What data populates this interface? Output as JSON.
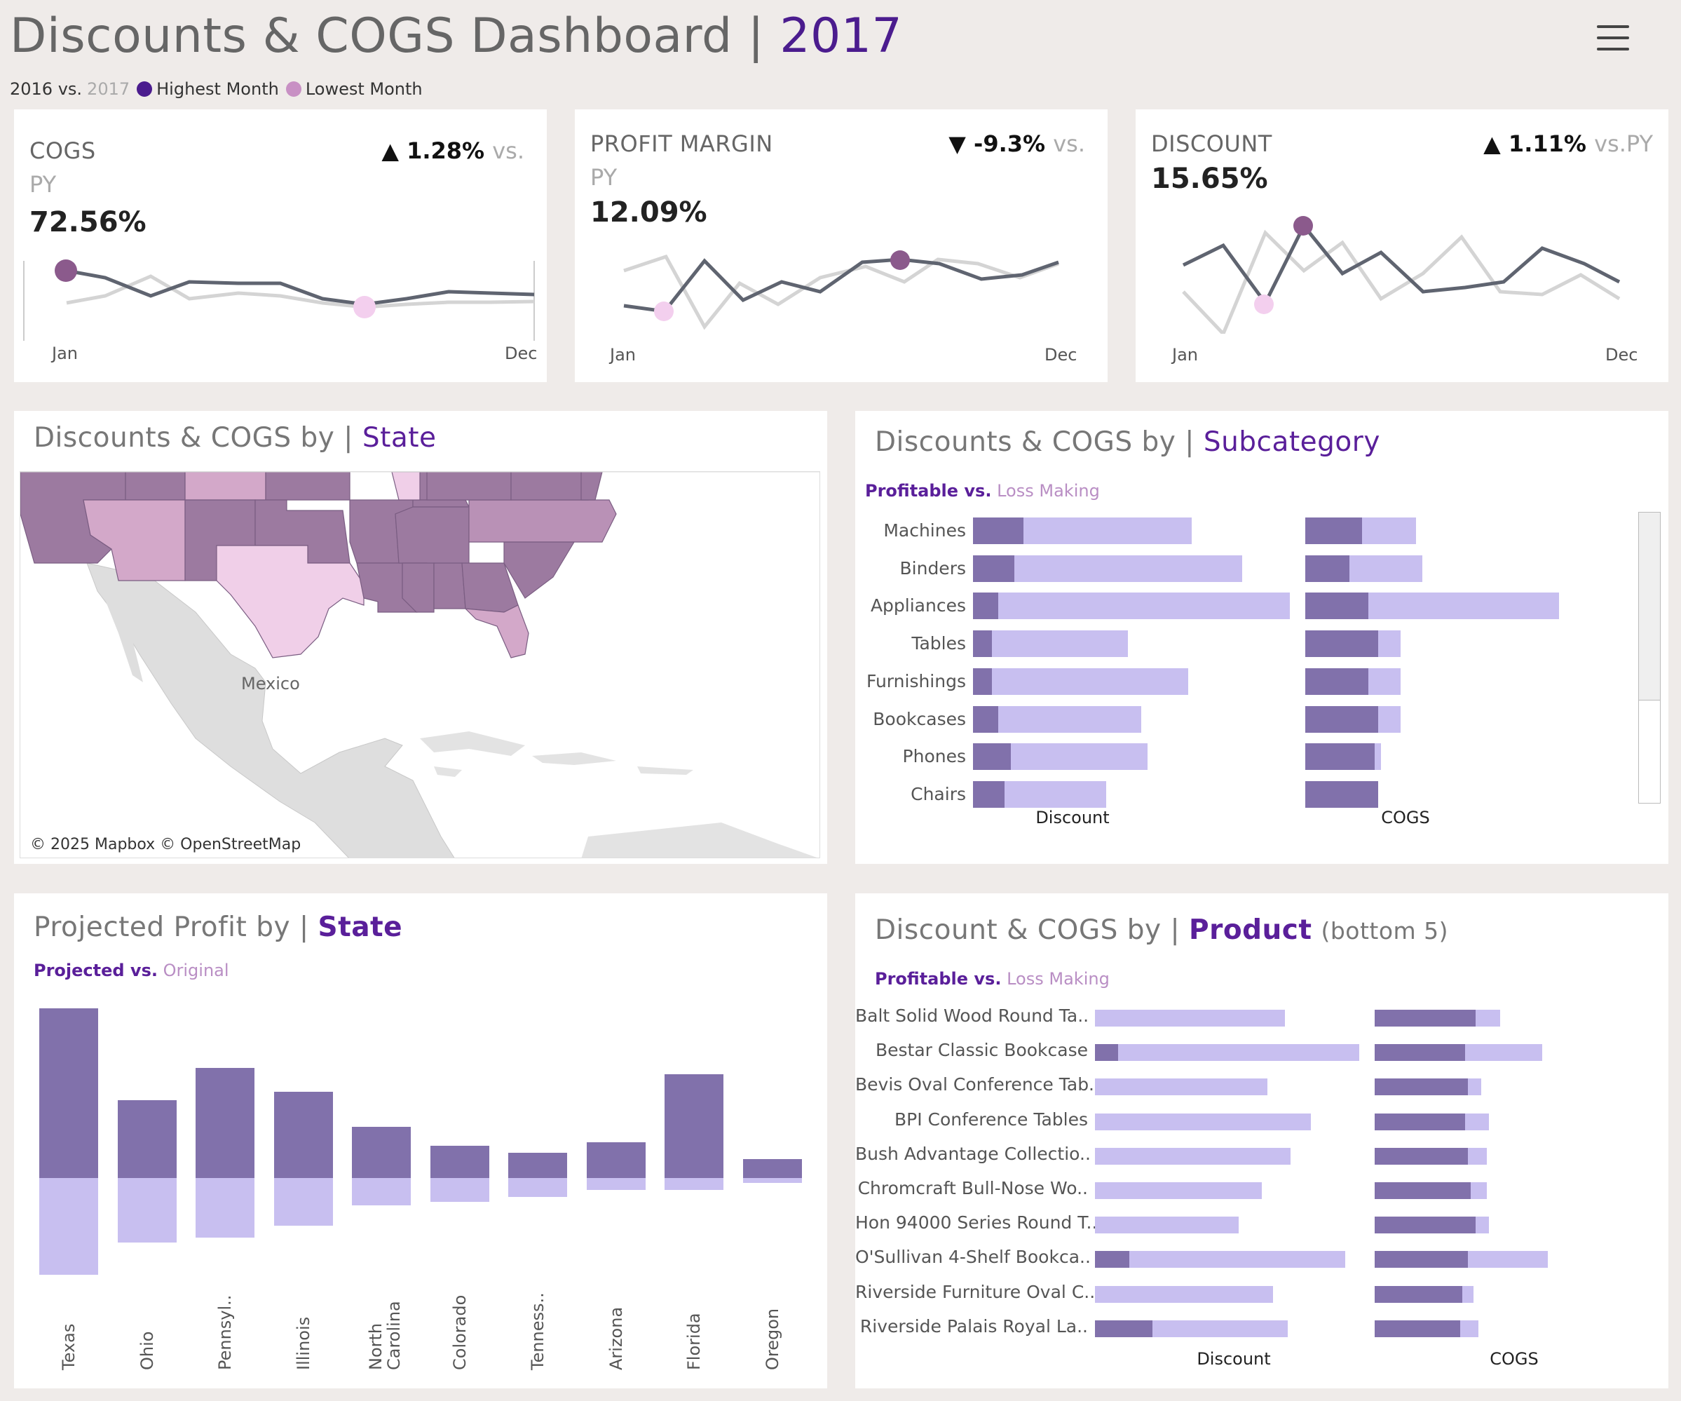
{
  "header": {
    "title": "Discounts & COGS Dashboard | ",
    "year": "2017",
    "legend_base": "2016 vs.",
    "legend_compare": "2017",
    "highest_label": "Highest Month",
    "lowest_label": "Lowest Month",
    "highest_color": "#4b1c8e",
    "lowest_color": "#c890c4"
  },
  "kpis": [
    {
      "label": "COGS",
      "change": "▲ 1.28%",
      "vs": "vs.",
      "py": "PY",
      "value": "72.56%",
      "axis_start": "Jan",
      "axis_end": "Dec"
    },
    {
      "label": "PROFIT MARGIN",
      "change": "▼ -9.3%",
      "vs": "vs.",
      "py": "PY",
      "value": "12.09%",
      "axis_start": "Jan",
      "axis_end": "Dec"
    },
    {
      "label": "DISCOUNT",
      "change": "▲ 1.11%",
      "vs": "vs.PY",
      "py": "",
      "value": "15.65%",
      "axis_start": "Jan",
      "axis_end": "Dec"
    }
  ],
  "map_panel": {
    "title": "Discounts & COGS by | ",
    "accent": "State",
    "country_label": "Mexico",
    "credit": "© 2025 Mapbox © OpenStreetMap"
  },
  "subcategory_panel": {
    "title": "Discounts & COGS by | ",
    "accent": "Subcategory",
    "legend_a": "Profitable vs.",
    "legend_b": "Loss Making",
    "axis_discount": "Discount",
    "axis_cogs": "COGS"
  },
  "subcategory_chart": {
    "type": "bar",
    "categories": [
      "Machines",
      "Binders",
      "Appliances",
      "Tables",
      "Furnishings",
      "Bookcases",
      "Phones",
      "Chairs"
    ],
    "series": [
      {
        "name": "Discount",
        "profitable": [
          0.16,
          0.13,
          0.08,
          0.06,
          0.06,
          0.08,
          0.12,
          0.1
        ],
        "loss_making": [
          0.69,
          0.85,
          1.0,
          0.49,
          0.68,
          0.53,
          0.55,
          0.42
        ]
      },
      {
        "name": "COGS",
        "profitable": [
          0.18,
          0.14,
          0.2,
          0.23,
          0.2,
          0.23,
          0.22,
          0.23
        ],
        "loss_making": [
          0.35,
          0.37,
          0.8,
          0.3,
          0.3,
          0.3,
          0.24,
          0.23
        ]
      }
    ]
  },
  "profit_panel": {
    "title": "Projected Profit  by | ",
    "accent": "State",
    "legend_a": "Projected vs.",
    "legend_b": "Original"
  },
  "profit_chart": {
    "type": "bar",
    "categories": [
      "Texas",
      "Ohio",
      "Pennsyl..",
      "Illinois",
      "North Carolina",
      "Colorado",
      "Tenness..",
      "Arizona",
      "Florida",
      "Oregon"
    ],
    "series": [
      {
        "name": "Projected",
        "values": [
          100,
          46,
          65,
          51,
          30,
          19,
          15,
          21,
          61,
          11
        ]
      },
      {
        "name": "Original",
        "values": [
          -57,
          -38,
          -35,
          -28,
          -16,
          -14,
          -11,
          -7,
          -7,
          -3
        ]
      }
    ]
  },
  "product_panel": {
    "title": "Discount & COGS  by | ",
    "accent": "Product",
    "suffix": "(bottom 5)",
    "legend_a": "Profitable vs.",
    "legend_b": "Loss Making",
    "axis_discount": "Discount",
    "axis_cogs": "COGS"
  },
  "product_chart": {
    "type": "bar",
    "categories": [
      "Balt Solid Wood Round Ta..",
      "Bestar Classic Bookcase",
      "Bevis Oval Conference Tab..",
      "BPI Conference Tables",
      "Bush Advantage Collectio..",
      "Chromcraft Bull-Nose Wo..",
      "Hon 94000 Series Round T..",
      "O'Sullivan 4-Shelf Bookca..",
      "Riverside Furniture Oval C..",
      "Riverside Palais Royal La.."
    ],
    "series": [
      {
        "name": "Discount",
        "profitable": [
          0,
          0.08,
          0,
          0,
          0,
          0,
          0,
          0.12,
          0,
          0.2
        ],
        "loss_making": [
          0.66,
          0.92,
          0.6,
          0.75,
          0.68,
          0.58,
          0.5,
          0.87,
          0.62,
          0.67
        ]
      },
      {
        "name": "COGS",
        "profitable": [
          0.38,
          0.34,
          0.35,
          0.34,
          0.35,
          0.36,
          0.38,
          0.35,
          0.33,
          0.32
        ],
        "loss_making": [
          0.47,
          0.63,
          0.4,
          0.43,
          0.42,
          0.42,
          0.43,
          0.65,
          0.37,
          0.39
        ]
      }
    ]
  }
}
